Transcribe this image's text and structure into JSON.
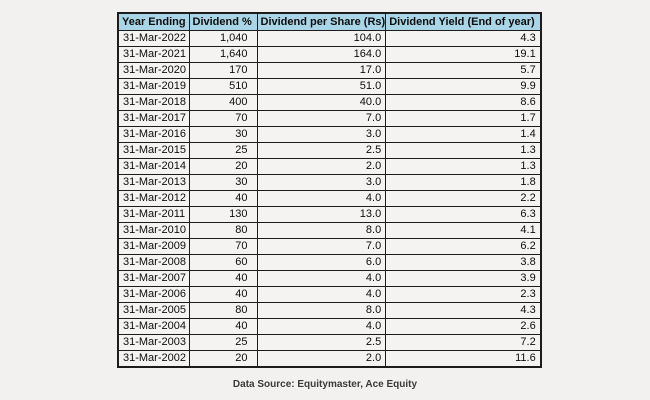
{
  "chart_data": {
    "type": "table",
    "columns": [
      "Year Ending",
      "Dividend %",
      "Dividend per Share (Rs)",
      "Dividend Yield (End of year)"
    ],
    "rows": [
      [
        "31-Mar-2022",
        "1,040",
        "104.0",
        "4.3"
      ],
      [
        "31-Mar-2021",
        "1,640",
        "164.0",
        "19.1"
      ],
      [
        "31-Mar-2020",
        "170",
        "17.0",
        "5.7"
      ],
      [
        "31-Mar-2019",
        "510",
        "51.0",
        "9.9"
      ],
      [
        "31-Mar-2018",
        "400",
        "40.0",
        "8.6"
      ],
      [
        "31-Mar-2017",
        "70",
        "7.0",
        "1.7"
      ],
      [
        "31-Mar-2016",
        "30",
        "3.0",
        "1.4"
      ],
      [
        "31-Mar-2015",
        "25",
        "2.5",
        "1.3"
      ],
      [
        "31-Mar-2014",
        "20",
        "2.0",
        "1.3"
      ],
      [
        "31-Mar-2013",
        "30",
        "3.0",
        "1.8"
      ],
      [
        "31-Mar-2012",
        "40",
        "4.0",
        "2.2"
      ],
      [
        "31-Mar-2011",
        "130",
        "13.0",
        "6.3"
      ],
      [
        "31-Mar-2010",
        "80",
        "8.0",
        "4.1"
      ],
      [
        "31-Mar-2009",
        "70",
        "7.0",
        "6.2"
      ],
      [
        "31-Mar-2008",
        "60",
        "6.0",
        "3.8"
      ],
      [
        "31-Mar-2007",
        "40",
        "4.0",
        "3.9"
      ],
      [
        "31-Mar-2006",
        "40",
        "4.0",
        "2.3"
      ],
      [
        "31-Mar-2005",
        "80",
        "8.0",
        "4.3"
      ],
      [
        "31-Mar-2004",
        "40",
        "4.0",
        "2.6"
      ],
      [
        "31-Mar-2003",
        "25",
        "2.5",
        "7.2"
      ],
      [
        "31-Mar-2002",
        "20",
        "2.0",
        "11.6"
      ]
    ],
    "header_bg": "#aad5e6",
    "title": "",
    "legend": null
  },
  "footer": {
    "text": "Data Source: Equitymaster, Ace Equity"
  }
}
